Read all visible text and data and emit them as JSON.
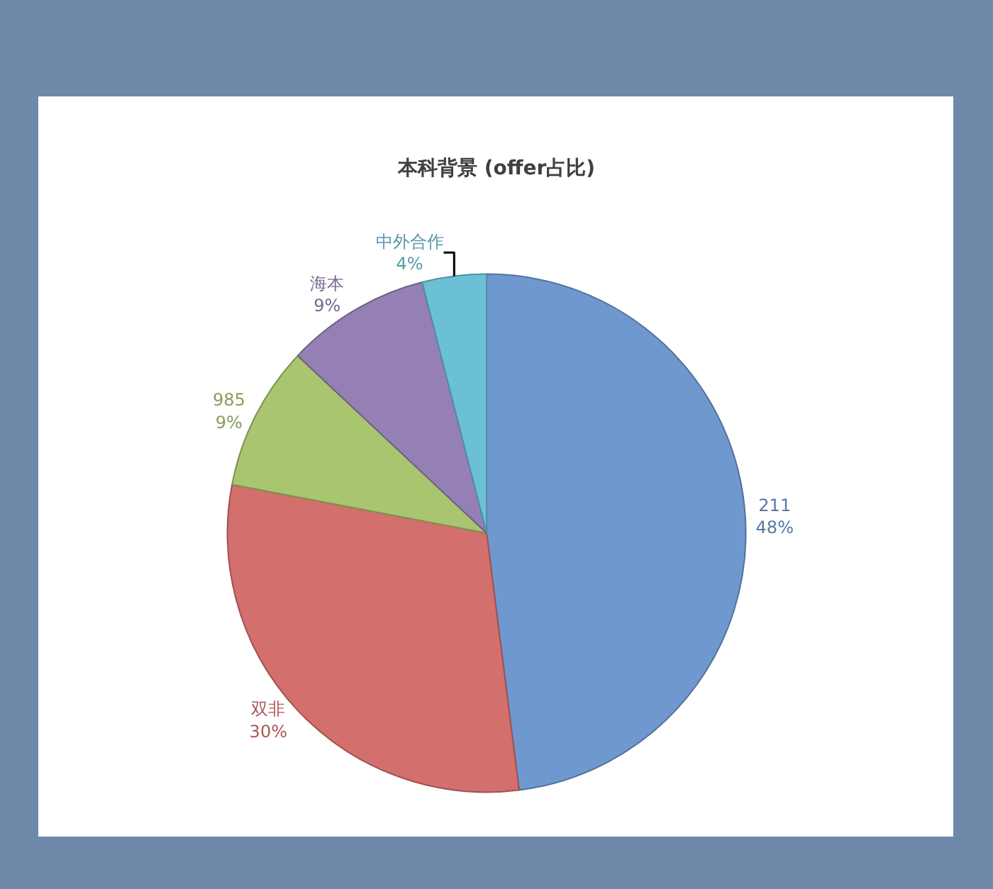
{
  "chart_data": {
    "type": "pie",
    "title": "本科背景 (offer占比)",
    "categories": [
      "211",
      "双非",
      "985",
      "海本",
      "中外合作"
    ],
    "values": [
      48,
      30,
      9,
      9,
      4
    ],
    "value_labels": [
      "48%",
      "30%",
      "9%",
      "9%",
      "4%"
    ],
    "colors": [
      "#6f98cf",
      "#d36f6c",
      "#a9c56f",
      "#9580b5",
      "#6cc0d6"
    ],
    "legend": false
  }
}
